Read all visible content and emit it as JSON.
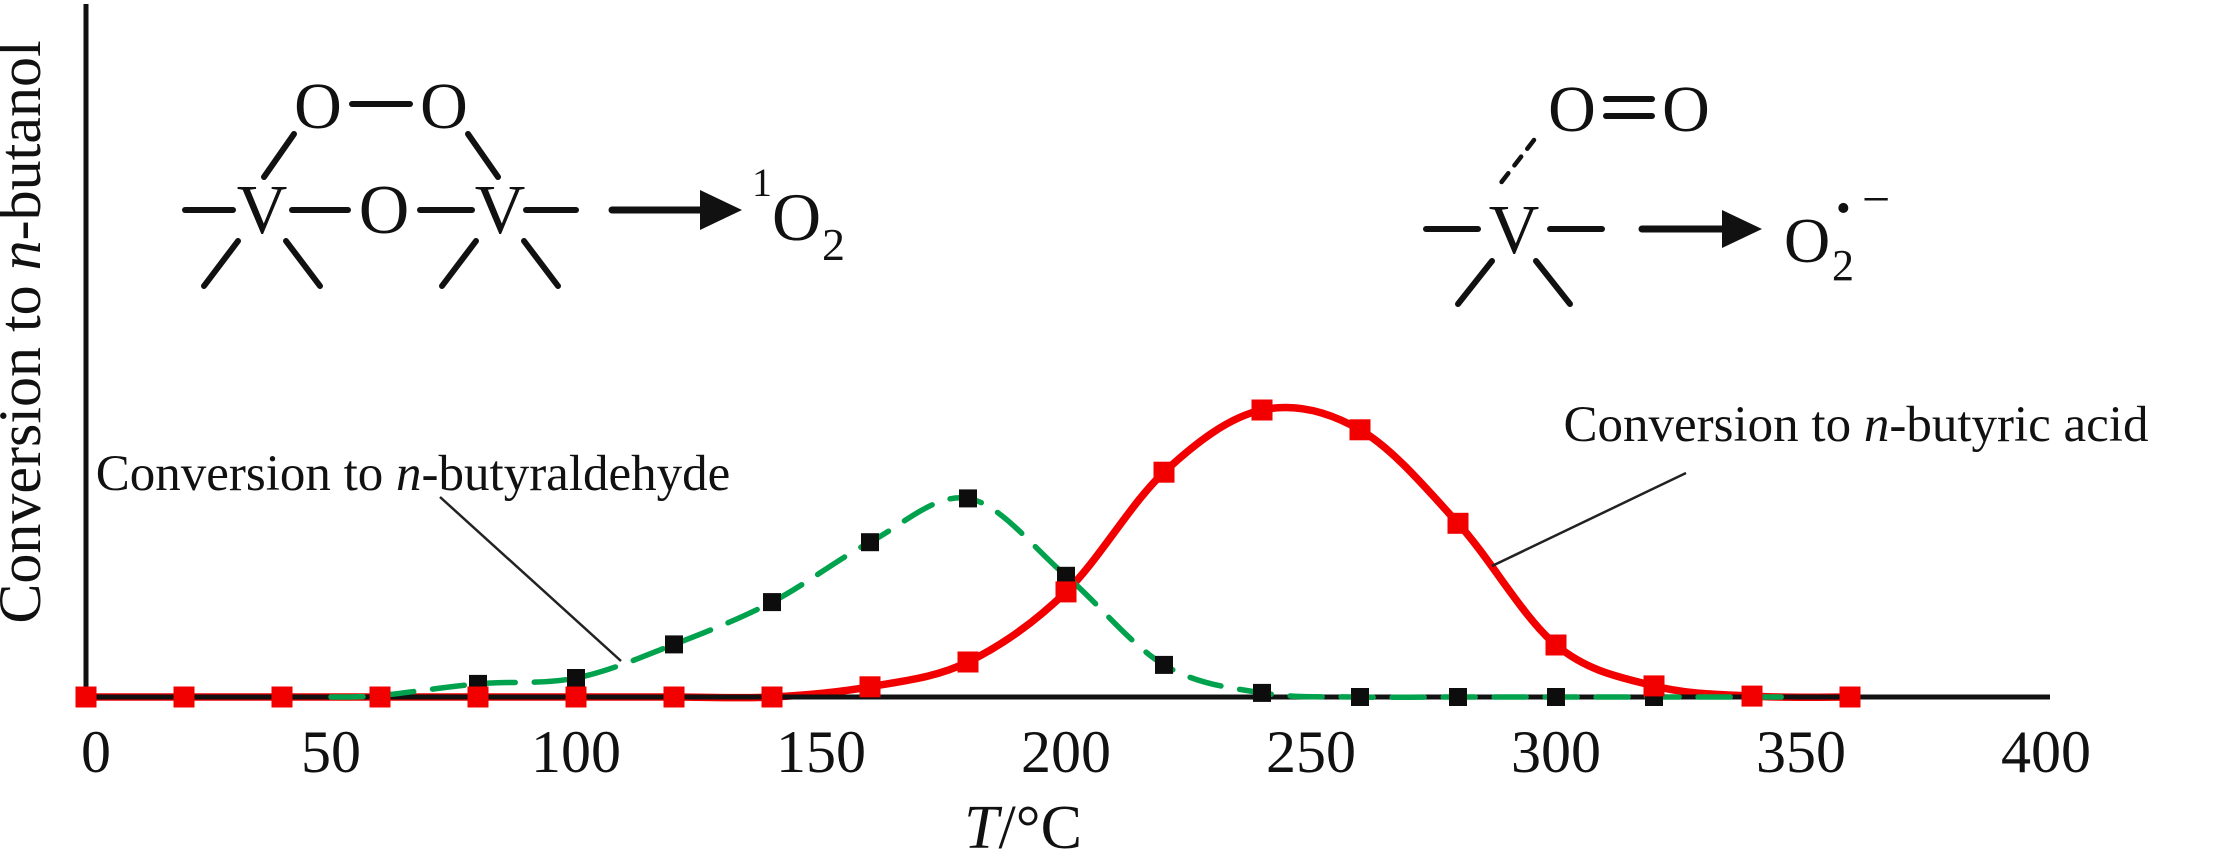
{
  "axes": {
    "y_label": {
      "prefix": "Conversion to ",
      "italic": "n",
      "suffix": "-butanol"
    },
    "x_label": {
      "italic": "T",
      "suffix": "/°C"
    },
    "x_ticks": [
      0,
      50,
      100,
      150,
      200,
      250,
      300,
      350,
      400
    ]
  },
  "annotations": {
    "color": "#5b2f96",
    "aldehyde": {
      "prefix": "Conversion to ",
      "italic": "n",
      "suffix": "-butyraldehyde"
    },
    "acid": {
      "prefix": "Conversion to ",
      "italic": "n",
      "suffix": "-butyric acid"
    }
  },
  "schemes": {
    "peroxo": {
      "o_top_left": "O",
      "o_top_right": "O",
      "v_left": "V",
      "o_bridge": "O",
      "v_right": "V",
      "product": {
        "sup": "1",
        "base": "O",
        "sub": "2"
      }
    },
    "superoxide": {
      "o_left": "O",
      "o_right": "O",
      "v": "V",
      "product": {
        "base": "O",
        "sub": "2",
        "radical": "•",
        "charge": "−"
      }
    }
  },
  "chart_data": {
    "type": "line",
    "title": "",
    "xlabel": "T/°C",
    "ylabel": "Conversion to n-butanol",
    "xlim": [
      0,
      400
    ],
    "x_ticks": [
      0,
      50,
      100,
      150,
      200,
      250,
      300,
      350,
      400
    ],
    "y_axis_note": "no numeric y scale shown; values are relative conversion, 100 = maximum of red curve",
    "grid": false,
    "legend": "inline text annotations with leader lines",
    "series": [
      {
        "name": "Conversion to n-butyraldehyde",
        "line": "dashed",
        "color": "#00a24d",
        "marker": "square",
        "marker_color": "#0d0d0d",
        "x": [
          0,
          20,
          40,
          60,
          80,
          100,
          120,
          140,
          160,
          180,
          200,
          220,
          240,
          260,
          280,
          300,
          320
        ],
        "y": [
          0,
          0,
          0,
          0.5,
          4.5,
          6.5,
          18,
          32.5,
          53,
          68,
          41.5,
          11,
          1.4,
          0,
          0,
          0,
          0
        ],
        "path_start_x": 50,
        "tail_x": 348
      },
      {
        "name": "Conversion to n-butyric acid",
        "line": "solid",
        "color": "#f20000",
        "marker": "square",
        "marker_color": "#f20000",
        "x": [
          0,
          20,
          40,
          60,
          80,
          100,
          120,
          140,
          160,
          180,
          200,
          220,
          240,
          260,
          280,
          300,
          320,
          340,
          360
        ],
        "y": [
          0,
          0,
          0,
          0,
          0,
          0,
          0,
          0,
          3.5,
          12,
          36,
          77,
          98.3,
          91.5,
          59.5,
          17.8,
          3.8,
          0.3,
          0
        ],
        "path_start_x": 0
      }
    ]
  }
}
